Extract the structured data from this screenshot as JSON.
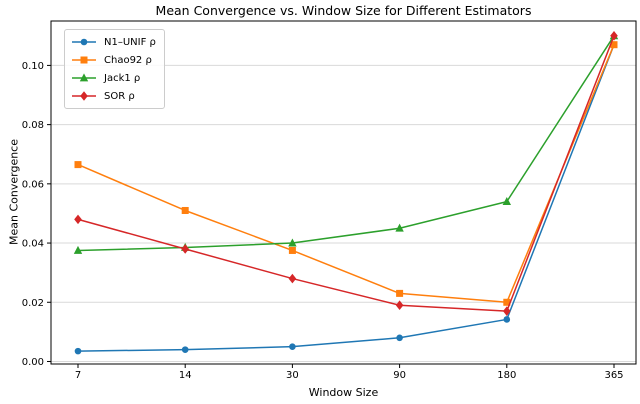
{
  "chart_data": {
    "type": "line",
    "title": "Mean Convergence vs. Window Size for Different Estimators",
    "xlabel": "Window Size",
    "ylabel": "Mean Convergence",
    "categories": [
      "7",
      "14",
      "30",
      "90",
      "180",
      "365"
    ],
    "y_ticks": [
      "0.00",
      "0.02",
      "0.04",
      "0.06",
      "0.08",
      "0.10"
    ],
    "ylim": [
      -0.00085,
      0.115
    ],
    "grid": "horizontal-only",
    "grid_color": "#d9d9d9",
    "legend_position": "upper-left",
    "series": [
      {
        "name": "N1–UNIF ρ",
        "color": "#1f77b4",
        "marker": "circle",
        "values": [
          0.0035,
          0.004,
          0.005,
          0.008,
          0.0142,
          0.107
        ]
      },
      {
        "name": "Chao92 ρ",
        "color": "#ff7f0e",
        "marker": "square",
        "values": [
          0.0665,
          0.051,
          0.0375,
          0.023,
          0.02,
          0.107
        ]
      },
      {
        "name": "Jack1 ρ",
        "color": "#2ca02c",
        "marker": "triangle-up",
        "values": [
          0.0375,
          0.0385,
          0.04,
          0.045,
          0.054,
          0.11
        ]
      },
      {
        "name": "SOR ρ",
        "color": "#d62728",
        "marker": "diamond",
        "values": [
          0.048,
          0.038,
          0.028,
          0.019,
          0.017,
          0.11
        ]
      }
    ]
  }
}
